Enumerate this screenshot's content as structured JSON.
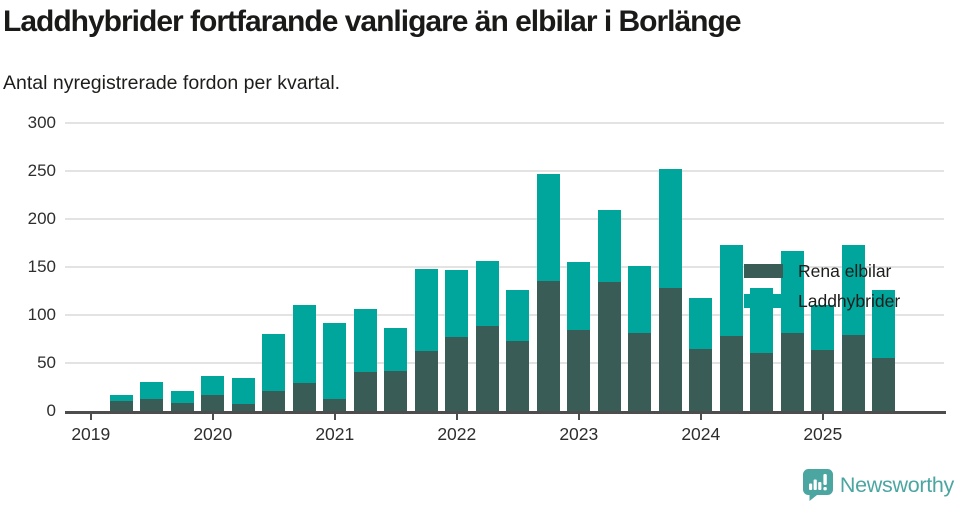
{
  "header": {
    "title": "Laddhybrider fortfarande vanligare än elbilar i Borlänge",
    "subtitle": "Antal nyregistrerade fordon per kvartal."
  },
  "chart_data": {
    "type": "bar",
    "stacked": true,
    "title": "Laddhybrider fortfarande vanligare än elbilar i Borlänge",
    "subtitle": "Antal nyregistrerade fordon per kvartal.",
    "categories": [
      "2019 Q2",
      "2019 Q3",
      "2019 Q4",
      "2020 Q1",
      "2020 Q2",
      "2020 Q3",
      "2020 Q4",
      "2021 Q1",
      "2021 Q2",
      "2021 Q3",
      "2021 Q4",
      "2022 Q1",
      "2022 Q2",
      "2022 Q3",
      "2022 Q4",
      "2023 Q1",
      "2023 Q2",
      "2023 Q3",
      "2023 Q4",
      "2024 Q1",
      "2024 Q2",
      "2024 Q3",
      "2024 Q4",
      "2025 Q1",
      "2025 Q2",
      "2025 Q3"
    ],
    "series": [
      {
        "name": "Rena elbilar",
        "color": "#395c57",
        "values": [
          10,
          13,
          8,
          17,
          7,
          21,
          29,
          13,
          41,
          42,
          63,
          77,
          89,
          73,
          135,
          84,
          134,
          81,
          128,
          65,
          78,
          60,
          81,
          64,
          79,
          55
        ]
      },
      {
        "name": "Laddhybrider",
        "color": "#00a59b",
        "values": [
          7,
          17,
          13,
          20,
          27,
          59,
          82,
          79,
          65,
          45,
          85,
          70,
          67,
          53,
          112,
          71,
          75,
          70,
          124,
          53,
          95,
          68,
          86,
          46,
          94,
          71
        ]
      }
    ],
    "xlabel": "",
    "ylabel": "",
    "ylim": [
      0,
      300
    ],
    "y_ticks": [
      0,
      50,
      100,
      150,
      200,
      250,
      300
    ],
    "x_tick_labels": [
      "2019",
      "2020",
      "2021",
      "2022",
      "2023",
      "2024",
      "2025"
    ],
    "grid": "horizontal",
    "legend_position": "top-right"
  },
  "footer": {
    "brand": "Newsworthy"
  },
  "colors": {
    "series_dark": "#395c57",
    "series_teal": "#00a59b",
    "gridline": "#e3e3e3",
    "axis": "#4d4d4d",
    "text": "#1d1d1b",
    "brand_teal": "#4ba6a2"
  }
}
